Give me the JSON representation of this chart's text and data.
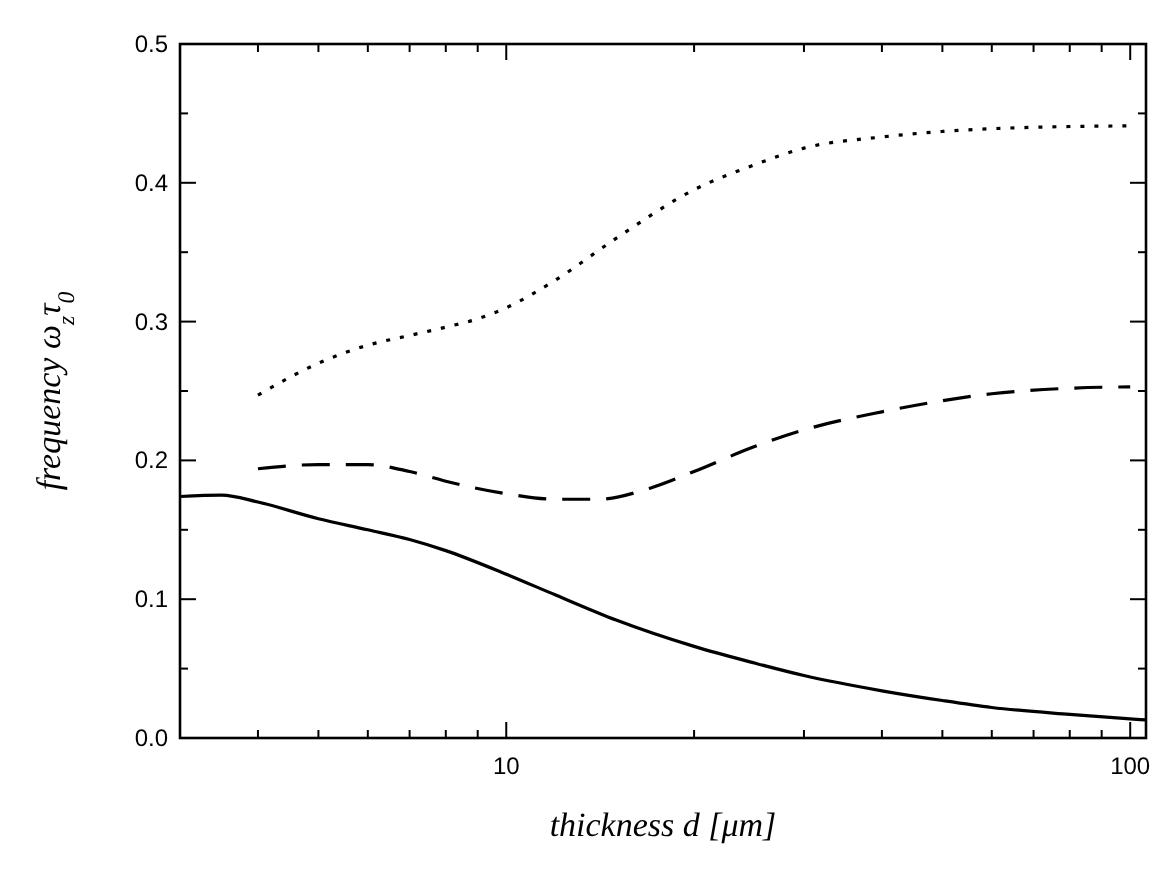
{
  "chart_data": {
    "type": "line",
    "xlabel": "thickness d [μm]",
    "ylabel": "frequency ω$_{z}$τ$_{0}$",
    "log": "x",
    "xlim": [
      3,
      106
    ],
    "ylim": [
      0,
      0.5
    ],
    "xticks": [
      {
        "value": 3,
        "label": null
      },
      {
        "value": 4,
        "label": null
      },
      {
        "value": 5,
        "label": null
      },
      {
        "value": 6,
        "label": null
      },
      {
        "value": 7,
        "label": null
      },
      {
        "value": 8,
        "label": null
      },
      {
        "value": 9,
        "label": null
      },
      10,
      {
        "value": 20,
        "label": null
      },
      {
        "value": 30,
        "label": null
      },
      {
        "value": 40,
        "label": null
      },
      {
        "value": 50,
        "label": null
      },
      {
        "value": 60,
        "label": null
      },
      {
        "value": 70,
        "label": null
      },
      {
        "value": 80,
        "label": null
      },
      {
        "value": 90,
        "label": null
      },
      100
    ],
    "yticks": [
      {
        "value": 0,
        "label": "0.0"
      },
      {
        "value": 0.05,
        "label": null
      },
      0.1,
      {
        "value": 0.15,
        "label": null
      },
      0.2,
      {
        "value": 0.25,
        "label": null
      },
      0.3,
      {
        "value": 0.35,
        "label": null
      },
      0.4,
      {
        "value": 0.45,
        "label": null
      },
      0.5
    ],
    "grid": false,
    "series": [
      {
        "color": "#000000",
        "line_style": "solid",
        "x": [
          3,
          3.5,
          4,
          5,
          6,
          7,
          8,
          10,
          12,
          15,
          20,
          25,
          30,
          40,
          50,
          60,
          80,
          106
        ],
        "values": [
          0.174,
          0.175,
          0.17,
          0.158,
          0.15,
          0.143,
          0.135,
          0.118,
          0.103,
          0.085,
          0.066,
          0.054,
          0.045,
          0.034,
          0.027,
          0.022,
          0.017,
          0.013
        ]
      },
      {
        "color": "#000000",
        "line_style": "dashed",
        "x": [
          4,
          5,
          6,
          7,
          8,
          10,
          12,
          14,
          17,
          20,
          25,
          30,
          40,
          50,
          60,
          80,
          100
        ],
        "values": [
          0.194,
          0.197,
          0.197,
          0.192,
          0.185,
          0.176,
          0.172,
          0.172,
          0.18,
          0.192,
          0.21,
          0.222,
          0.235,
          0.243,
          0.248,
          0.252,
          0.253
        ]
      },
      {
        "color": "#000000",
        "line_style": "dotted",
        "x": [
          4,
          5,
          6,
          7,
          8,
          9,
          10,
          12,
          15,
          20,
          25,
          30,
          40,
          50,
          70,
          100
        ],
        "values": [
          0.247,
          0.27,
          0.283,
          0.29,
          0.296,
          0.302,
          0.31,
          0.33,
          0.36,
          0.395,
          0.413,
          0.425,
          0.433,
          0.437,
          0.44,
          0.441
        ]
      }
    ]
  }
}
